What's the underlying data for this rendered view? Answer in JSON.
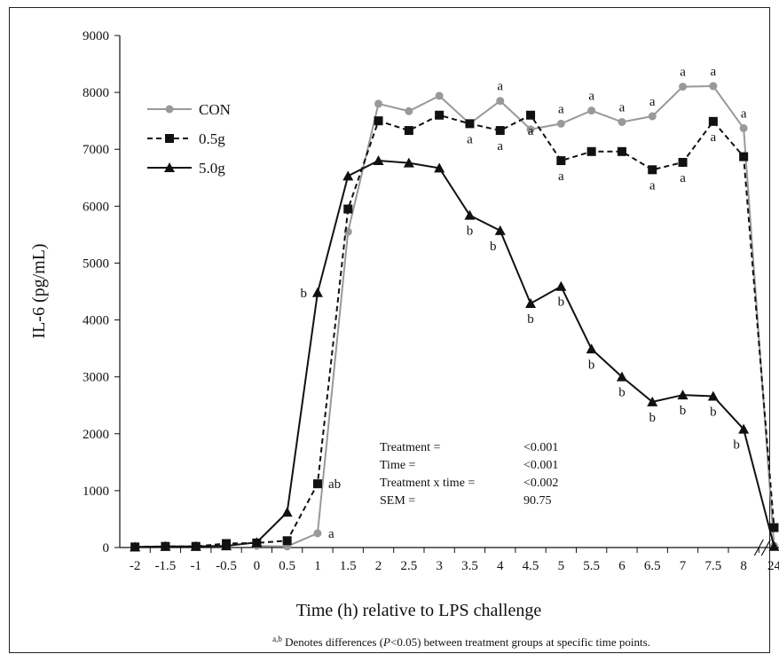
{
  "chart_data": {
    "type": "line",
    "title": "",
    "xlabel": "Time (h) relative to LPS challenge",
    "ylabel": "IL-6 (pg/mL)",
    "ylim": [
      0,
      9000
    ],
    "yticks": [
      "0",
      "1000",
      "2000",
      "3000",
      "4000",
      "5000",
      "6000",
      "7000",
      "8000",
      "9000"
    ],
    "categories": [
      "-2",
      "-1.5",
      "-1",
      "-0.5",
      "0",
      "0.5",
      "1",
      "1.5",
      "2",
      "2.5",
      "3",
      "3.5",
      "4",
      "4.5",
      "5",
      "5.5",
      "6",
      "6.5",
      "7",
      "7.5",
      "8",
      "24"
    ],
    "axis_break_between": [
      "8",
      "24"
    ],
    "legend_position": "top-left",
    "series": [
      {
        "name": "CON",
        "color": "#999999",
        "marker": "circle",
        "line_style": "solid",
        "values": [
          null,
          null,
          null,
          null,
          30,
          20,
          250,
          5550,
          7800,
          7670,
          7940,
          7450,
          7850,
          7350,
          7450,
          7680,
          7480,
          7580,
          8100,
          8110,
          7370,
          30
        ]
      },
      {
        "name": "0.5g",
        "color": "#111111",
        "marker": "square",
        "line_style": "dashed",
        "values": [
          10,
          20,
          20,
          70,
          80,
          120,
          1120,
          5950,
          7500,
          7330,
          7600,
          7450,
          7330,
          7600,
          6800,
          6960,
          6960,
          6640,
          6770,
          7490,
          6870,
          350
        ]
      },
      {
        "name": "5.0g",
        "color": "#111111",
        "marker": "triangle",
        "line_style": "solid",
        "values": [
          10,
          20,
          20,
          30,
          90,
          620,
          4480,
          6530,
          6800,
          6760,
          6670,
          5840,
          5570,
          4290,
          4590,
          3490,
          3000,
          2560,
          2680,
          2660,
          2080,
          20
        ]
      }
    ],
    "annotations": [
      {
        "text": "a",
        "x": "1",
        "y": 250,
        "pos": "right"
      },
      {
        "text": "ab",
        "x": "1",
        "y": 1120,
        "pos": "right"
      },
      {
        "text": "b",
        "x": "1",
        "y": 4480,
        "pos": "left"
      },
      {
        "text": "b",
        "x": "3.5",
        "y": 5840,
        "pos": "below"
      },
      {
        "text": "b",
        "x": "4",
        "y": 5570,
        "pos": "below-left"
      },
      {
        "text": "b",
        "x": "4.5",
        "y": 4290,
        "pos": "below"
      },
      {
        "text": "b",
        "x": "5",
        "y": 4590,
        "pos": "below"
      },
      {
        "text": "b",
        "x": "5.5",
        "y": 3490,
        "pos": "below"
      },
      {
        "text": "b",
        "x": "6",
        "y": 3000,
        "pos": "below"
      },
      {
        "text": "b",
        "x": "6.5",
        "y": 2560,
        "pos": "below"
      },
      {
        "text": "b",
        "x": "7",
        "y": 2680,
        "pos": "below"
      },
      {
        "text": "b",
        "x": "7.5",
        "y": 2660,
        "pos": "below"
      },
      {
        "text": "b",
        "x": "8",
        "y": 2080,
        "pos": "below-left"
      },
      {
        "text": "a",
        "x": "3.5",
        "y": 7450,
        "pos": "below"
      },
      {
        "text": "a",
        "x": "4",
        "y": 7330,
        "pos": "below"
      },
      {
        "text": "a",
        "x": "4",
        "y": 7850,
        "pos": "above"
      },
      {
        "text": "a",
        "x": "4.5",
        "y": 7600,
        "pos": "below"
      },
      {
        "text": "a",
        "x": "5",
        "y": 7450,
        "pos": "above"
      },
      {
        "text": "a",
        "x": "5",
        "y": 6800,
        "pos": "below"
      },
      {
        "text": "a",
        "x": "5.5",
        "y": 7680,
        "pos": "above"
      },
      {
        "text": "a",
        "x": "6",
        "y": 7480,
        "pos": "above"
      },
      {
        "text": "a",
        "x": "6.5",
        "y": 7580,
        "pos": "above"
      },
      {
        "text": "a",
        "x": "6.5",
        "y": 6640,
        "pos": "below"
      },
      {
        "text": "a",
        "x": "7",
        "y": 8100,
        "pos": "above"
      },
      {
        "text": "a",
        "x": "7",
        "y": 6770,
        "pos": "below"
      },
      {
        "text": "a",
        "x": "7.5",
        "y": 8110,
        "pos": "above"
      },
      {
        "text": "a",
        "x": "7.5",
        "y": 7490,
        "pos": "below"
      },
      {
        "text": "a",
        "x": "8",
        "y": 7370,
        "pos": "above"
      }
    ],
    "stats": [
      {
        "label": "Treatment =",
        "value": "<0.001"
      },
      {
        "label": "Time =",
        "value": "<0.001"
      },
      {
        "label": "Treatment x time =",
        "value": "<0.002"
      },
      {
        "label": "SEM =",
        "value": "90.75"
      }
    ],
    "footnote": {
      "superscript": "a,b",
      "text_before": " Denotes differences (",
      "italic": "P",
      "text_after": "<0.05) between treatment groups at specific time points."
    },
    "grid": false
  }
}
